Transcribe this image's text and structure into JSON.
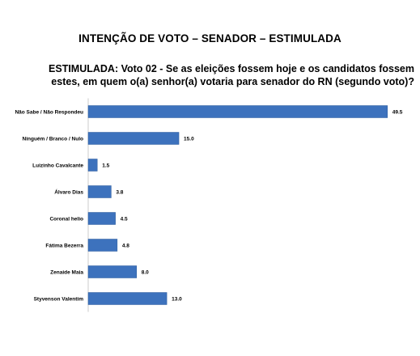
{
  "header": {
    "title": "INTENÇÃO DE VOTO – SENADOR – ESTIMULADA",
    "subtitle_line1": "ESTIMULADA: Voto 02 - Se as eleições fossem hoje e os candidatos fossem",
    "subtitle_line2": "estes, em quem o(a) senhor(a) votaria para senador do RN (segundo voto)?"
  },
  "colors": {
    "bar": "#3d72bd",
    "bar_edge": "#2a5a9c"
  },
  "chart_data": {
    "type": "bar",
    "orientation": "horizontal",
    "title": "INTENÇÃO DE VOTO – SENADOR – ESTIMULADA",
    "subtitle": "ESTIMULADA: Voto 02 - Se as eleições fossem hoje e os candidatos fossem estes, em quem o(a) senhor(a) votaria para senador do RN (segundo voto)?",
    "xlabel": "",
    "ylabel": "",
    "xlim": [
      0,
      50
    ],
    "grid": false,
    "legend": "none",
    "categories": [
      "Não Sabe / Não Respondeu",
      "Ninguém / Branco / Nulo",
      "Luizinho Cavalcante",
      "Álvaro Dias",
      "Coronal helio",
      "Fátima Bezerra",
      "Zenaide Maia",
      "Styvenson Valentim"
    ],
    "values": [
      49.5,
      15.0,
      1.5,
      3.8,
      4.5,
      4.8,
      8.0,
      13.0
    ],
    "value_labels": [
      "49.5",
      "15.0",
      "1.5",
      "3.8",
      "4.5",
      "4.8",
      "8.0",
      "13.0"
    ]
  }
}
